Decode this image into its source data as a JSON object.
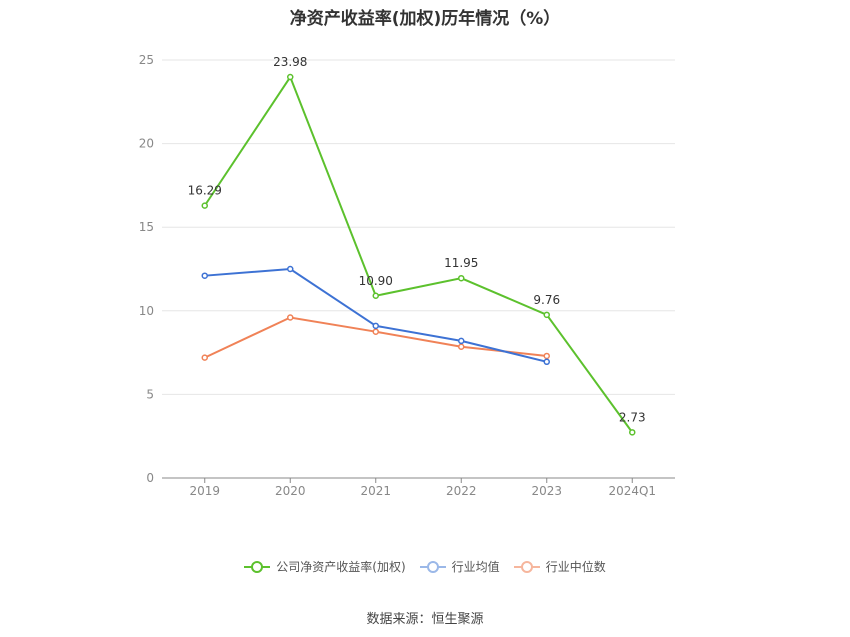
{
  "chart_data": {
    "type": "line",
    "title": "净资产收益率(加权)历年情况（%）",
    "categories": [
      "2019",
      "2020",
      "2021",
      "2022",
      "2023",
      "2024Q1"
    ],
    "ylim": [
      0,
      25
    ],
    "yticks": [
      0,
      5,
      10,
      15,
      20,
      25
    ],
    "grid": true,
    "legend_position": "bottom",
    "series": [
      {
        "name": "公司净资产收益率(加权)",
        "color": "#5cc12d",
        "values": [
          16.29,
          23.98,
          10.9,
          11.95,
          9.76,
          2.73
        ],
        "labels": [
          "16.29",
          "23.98",
          "10.90",
          "11.95",
          "9.76",
          "2.73"
        ]
      },
      {
        "name": "行业均值",
        "color": "#3d72d4",
        "values": [
          12.1,
          12.5,
          9.1,
          8.2,
          6.95,
          null
        ]
      },
      {
        "name": "行业中位数",
        "color": "#f08257",
        "values": [
          7.2,
          9.6,
          8.75,
          7.85,
          7.3,
          null
        ]
      }
    ]
  },
  "source": "数据来源：恒生聚源"
}
